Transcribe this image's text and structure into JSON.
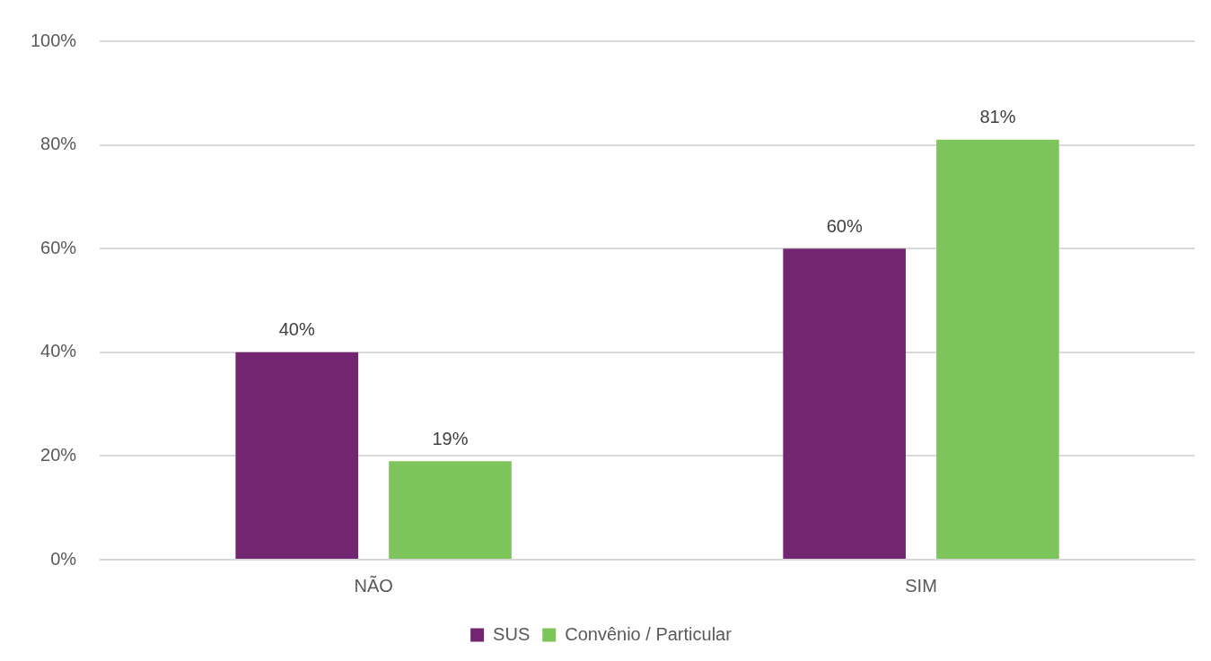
{
  "chart_data": {
    "type": "bar",
    "categories": [
      "NÃO",
      "SIM"
    ],
    "series": [
      {
        "name": "SUS",
        "color": "#722671",
        "values": [
          40,
          60
        ],
        "value_labels": [
          "40%",
          "60%"
        ]
      },
      {
        "name": "Convênio / Particular",
        "color": "#7dc45a",
        "values": [
          19,
          81
        ],
        "value_labels": [
          "19%",
          "81%"
        ]
      }
    ],
    "ylim": [
      0,
      100
    ],
    "yticks": [
      {
        "value": 0,
        "label": "0%"
      },
      {
        "value": 20,
        "label": "20%"
      },
      {
        "value": 40,
        "label": "40%"
      },
      {
        "value": 60,
        "label": "60%"
      },
      {
        "value": 80,
        "label": "80%"
      },
      {
        "value": 100,
        "label": "100%"
      }
    ],
    "grid": "y",
    "legend": "bottom"
  }
}
